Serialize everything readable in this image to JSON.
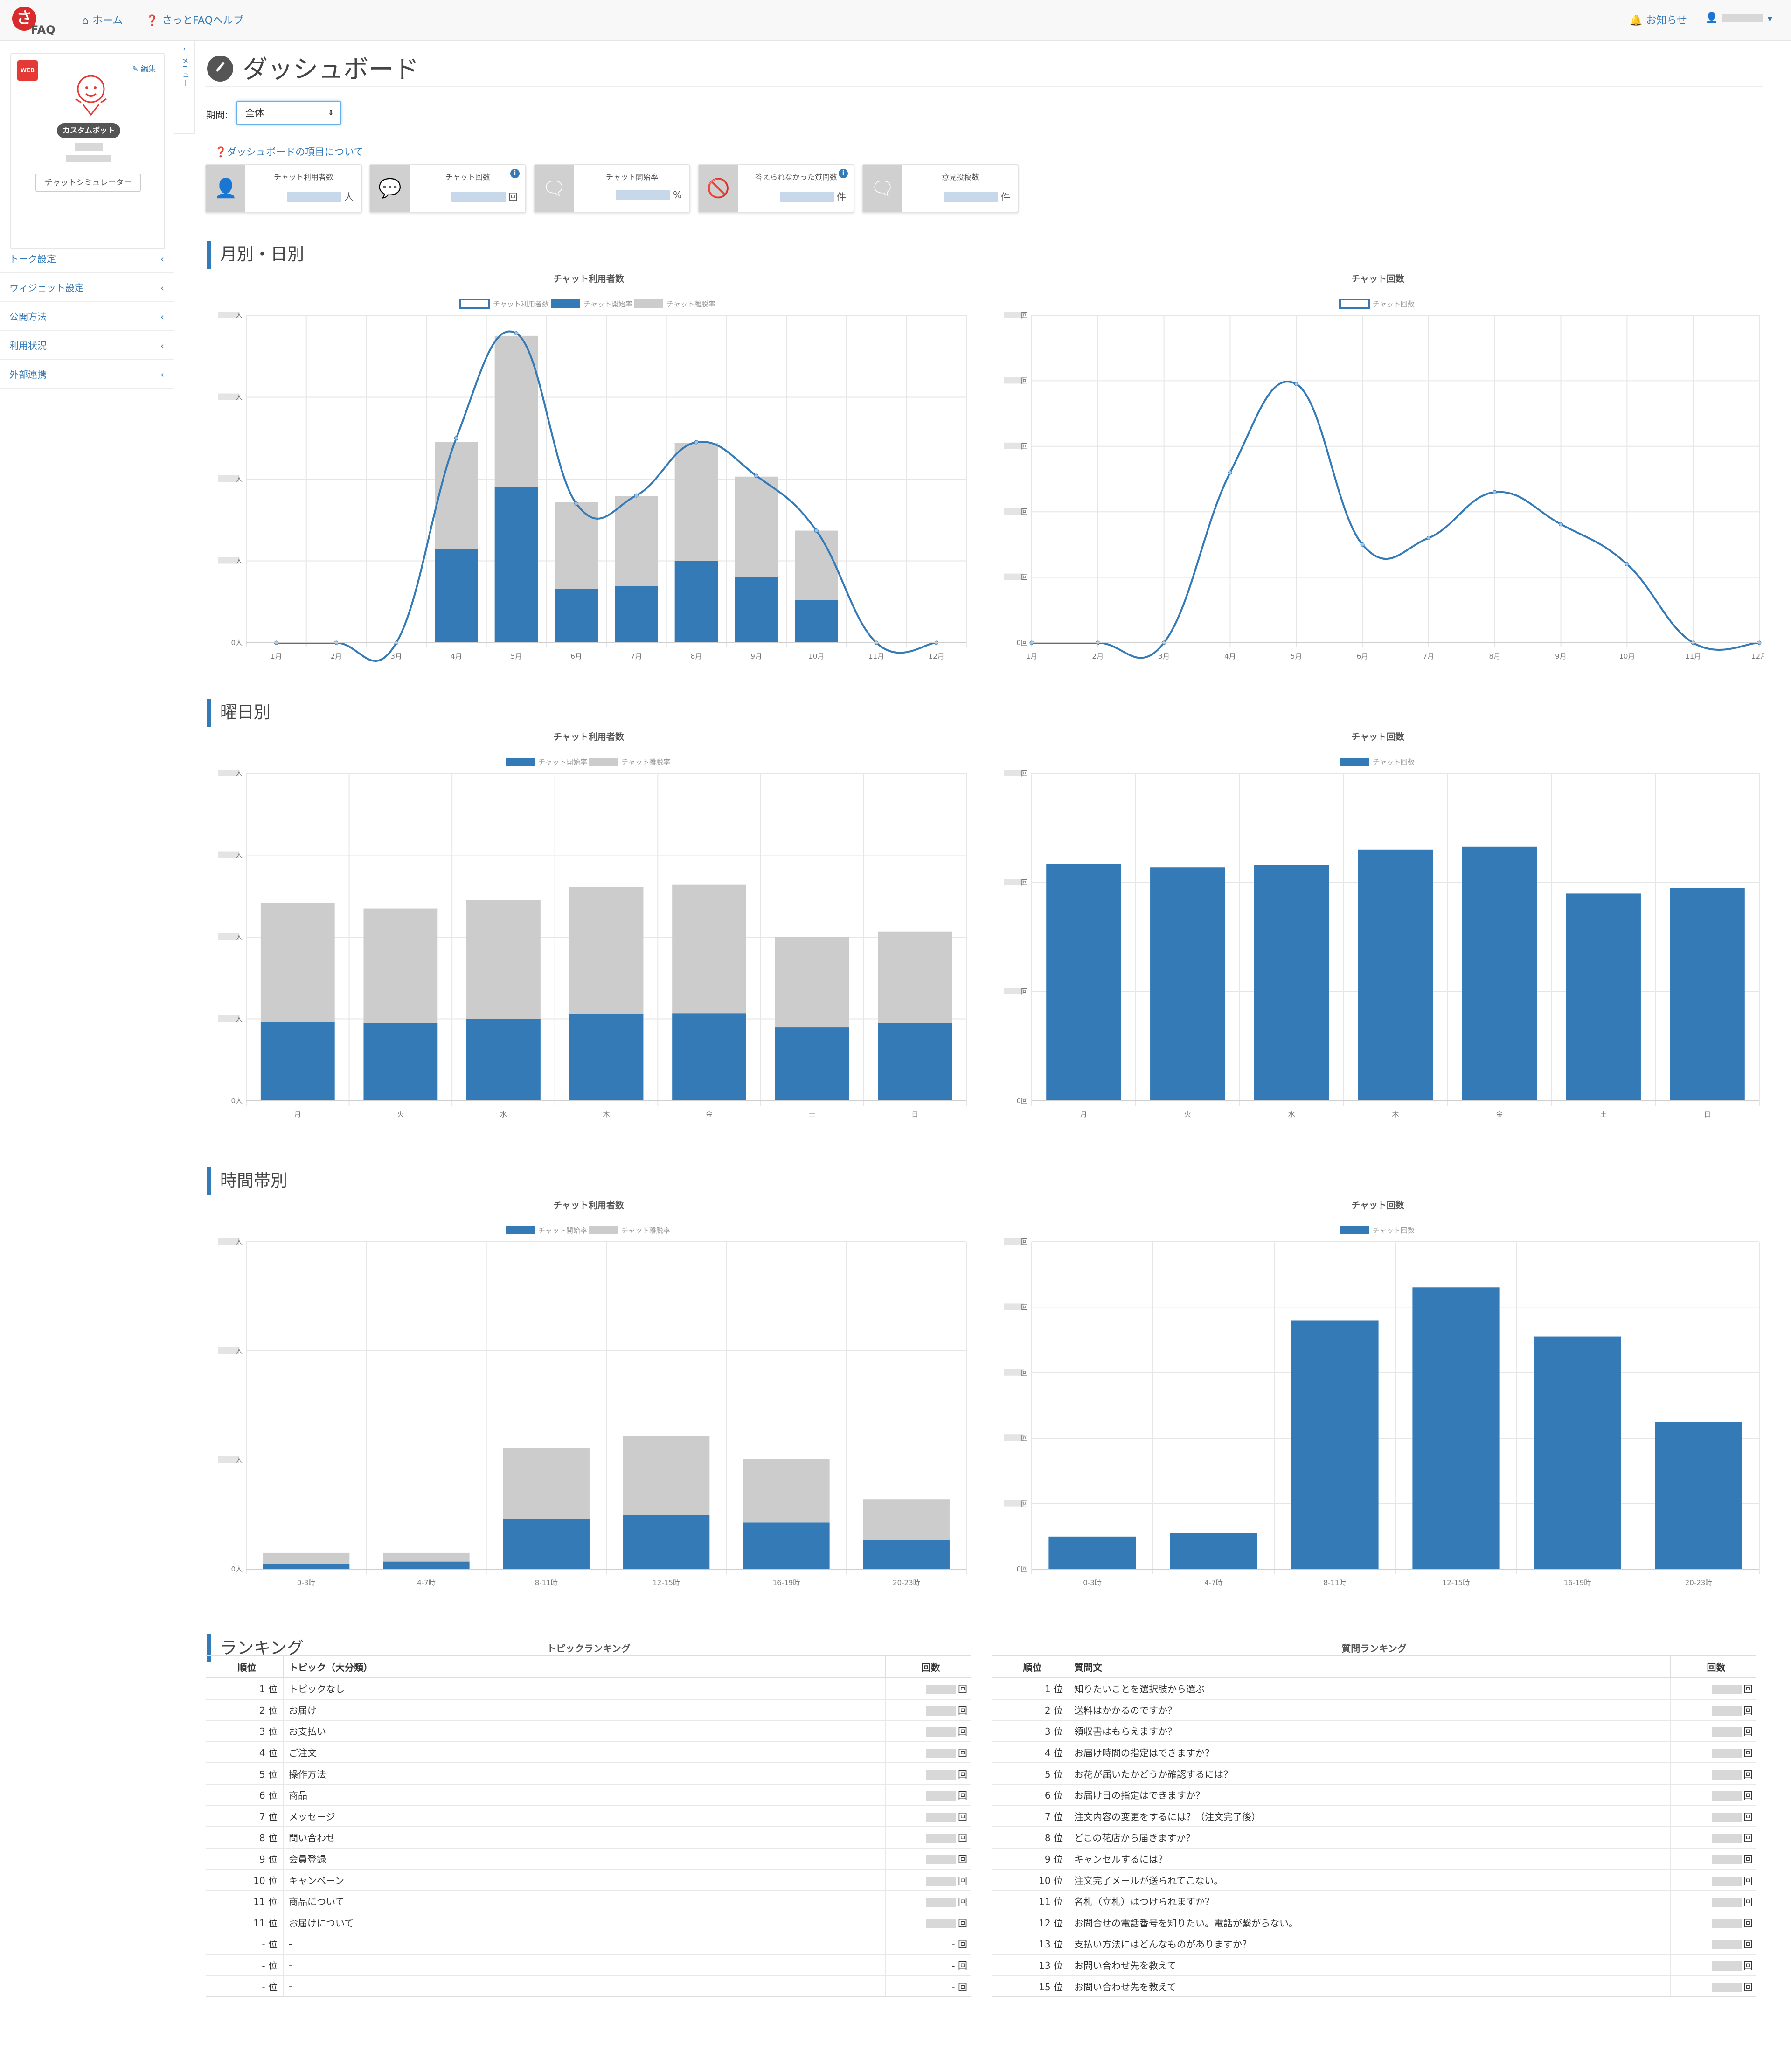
{
  "header": {
    "logo_text": "FAQ",
    "logo_mark": "さ",
    "nav_home": "ホーム",
    "nav_help": "さっとFAQヘルプ",
    "notifications": "お知らせ"
  },
  "sidebar": {
    "badge": "WEB",
    "edit_label": "編集",
    "bot_name": "カスタムボット",
    "simulator_button": "チャットシミュレーター",
    "menu_toggle": "メニュー",
    "items": [
      {
        "label": "トーク設定"
      },
      {
        "label": "ウィジェット設定"
      },
      {
        "label": "公開方法"
      },
      {
        "label": "利用状況"
      },
      {
        "label": "外部連携"
      }
    ]
  },
  "page": {
    "title": "ダッシュボード",
    "period_label": "期間:",
    "period_value": "全体",
    "help_link": "ダッシュボードの項目について"
  },
  "kpis": [
    {
      "label": "チャット利用者数",
      "unit": "人",
      "icon": "user-icon",
      "info": false
    },
    {
      "label": "チャット回数",
      "unit": "回",
      "icon": "chat-bubbles-icon",
      "info": true
    },
    {
      "label": "チャット開始率",
      "unit": "%",
      "icon": "comment-icon",
      "info": false
    },
    {
      "label": "答えられなかった質問数",
      "unit": "件",
      "icon": "comment-slash-icon",
      "info": true
    },
    {
      "label": "意見投稿数",
      "unit": "件",
      "icon": "comment-icon",
      "info": false
    }
  ],
  "sections": {
    "monthly": "月別・日別",
    "weekday": "曜日別",
    "hourly": "時間帯別",
    "ranking": "ランキング"
  },
  "colors": {
    "blue": "#337ab7",
    "gray": "#cccccc",
    "grid": "#e6e6e6"
  },
  "chart_data": [
    {
      "id": "monthly-users",
      "type": "bar",
      "title": "チャット利用者数",
      "legend": [
        "チャット利用者数",
        "チャット開始率",
        "チャット離脱率"
      ],
      "categories": [
        "1月",
        "2月",
        "3月",
        "4月",
        "5月",
        "6月",
        "7月",
        "8月",
        "9月",
        "10月",
        "11月",
        "12月"
      ],
      "stacked": true,
      "y_unit": "人",
      "ylim": [
        0,
        4
      ],
      "series": [
        {
          "name": "チャット開始率",
          "values": [
            0,
            0,
            0,
            1.15,
            1.9,
            0.66,
            0.69,
            1.0,
            0.8,
            0.52,
            0,
            0
          ]
        },
        {
          "name": "チャット離脱率",
          "values": [
            0,
            0,
            0,
            1.3,
            1.85,
            1.06,
            1.1,
            1.44,
            1.23,
            0.85,
            0,
            0
          ]
        },
        {
          "name": "チャット利用者数",
          "kind": "line",
          "values": [
            0,
            0,
            0,
            2.5,
            3.78,
            1.7,
            1.8,
            2.45,
            2.04,
            1.37,
            0,
            0
          ]
        }
      ]
    },
    {
      "id": "monthly-count",
      "type": "line",
      "title": "チャット回数",
      "legend": [
        "チャット回数"
      ],
      "categories": [
        "1月",
        "2月",
        "3月",
        "4月",
        "5月",
        "6月",
        "7月",
        "8月",
        "9月",
        "10月",
        "11月",
        "12月"
      ],
      "y_unit": "回",
      "ylim": [
        0,
        5
      ],
      "series": [
        {
          "name": "チャット回数",
          "values": [
            0,
            0,
            0,
            2.6,
            3.95,
            1.5,
            1.6,
            2.3,
            1.81,
            1.2,
            0,
            0
          ]
        }
      ]
    },
    {
      "id": "weekday-users",
      "type": "bar",
      "title": "チャット利用者数",
      "legend": [
        "チャット開始率",
        "チャット離脱率"
      ],
      "categories": [
        "月",
        "火",
        "水",
        "木",
        "金",
        "土",
        "日"
      ],
      "stacked": true,
      "y_unit": "人",
      "ylim": [
        0,
        4
      ],
      "series": [
        {
          "name": "チャット開始率",
          "values": [
            0.96,
            0.95,
            1.0,
            1.06,
            1.07,
            0.9,
            0.95
          ]
        },
        {
          "name": "チャット離脱率",
          "values": [
            1.46,
            1.4,
            1.45,
            1.55,
            1.57,
            1.1,
            1.12
          ]
        }
      ]
    },
    {
      "id": "weekday-count",
      "type": "bar",
      "title": "チャット回数",
      "legend": [
        "チャット回数"
      ],
      "categories": [
        "月",
        "火",
        "水",
        "木",
        "金",
        "土",
        "日"
      ],
      "y_unit": "回",
      "ylim": [
        0,
        3
      ],
      "series": [
        {
          "name": "チャット回数",
          "values": [
            2.17,
            2.14,
            2.16,
            2.3,
            2.33,
            1.9,
            1.95
          ]
        }
      ]
    },
    {
      "id": "hourly-users",
      "type": "bar",
      "title": "チャット利用者数",
      "legend": [
        "チャット開始率",
        "チャット離脱率"
      ],
      "categories": [
        "0-3時",
        "4-7時",
        "8-11時",
        "12-15時",
        "16-19時",
        "20-23時"
      ],
      "stacked": true,
      "y_unit": "人",
      "ylim": [
        0,
        3
      ],
      "series": [
        {
          "name": "チャット開始率",
          "values": [
            0.05,
            0.07,
            0.46,
            0.5,
            0.43,
            0.27
          ]
        },
        {
          "name": "チャット離脱率",
          "values": [
            0.1,
            0.08,
            0.65,
            0.72,
            0.58,
            0.37
          ]
        }
      ]
    },
    {
      "id": "hourly-count",
      "type": "bar",
      "title": "チャット回数",
      "legend": [
        "チャット回数"
      ],
      "categories": [
        "0-3時",
        "4-7時",
        "8-11時",
        "12-15時",
        "16-19時",
        "20-23時"
      ],
      "y_unit": "回",
      "ylim": [
        0,
        5
      ],
      "series": [
        {
          "name": "チャット回数",
          "values": [
            0.5,
            0.55,
            3.8,
            4.3,
            3.55,
            2.25
          ]
        }
      ]
    }
  ],
  "rankings": {
    "topic": {
      "title": "トピックランキング",
      "headers": {
        "rank": "順位",
        "name": "トピック（大分類）",
        "count": "回数"
      },
      "count_unit": "回",
      "rows": [
        {
          "rank": "1 位",
          "name": "トピックなし",
          "count": ""
        },
        {
          "rank": "2 位",
          "name": "お届け",
          "count": ""
        },
        {
          "rank": "3 位",
          "name": "お支払い",
          "count": ""
        },
        {
          "rank": "4 位",
          "name": "ご注文",
          "count": ""
        },
        {
          "rank": "5 位",
          "name": "操作方法",
          "count": ""
        },
        {
          "rank": "6 位",
          "name": "商品",
          "count": ""
        },
        {
          "rank": "7 位",
          "name": "メッセージ",
          "count": ""
        },
        {
          "rank": "8 位",
          "name": "問い合わせ",
          "count": ""
        },
        {
          "rank": "9 位",
          "name": "会員登録",
          "count": ""
        },
        {
          "rank": "10 位",
          "name": "キャンペーン",
          "count": ""
        },
        {
          "rank": "11 位",
          "name": "商品について",
          "count": ""
        },
        {
          "rank": "11 位",
          "name": "お届けについて",
          "count": ""
        },
        {
          "rank": "- 位",
          "name": "-",
          "count": "-"
        },
        {
          "rank": "- 位",
          "name": "-",
          "count": "-"
        },
        {
          "rank": "- 位",
          "name": "-",
          "count": "-"
        }
      ]
    },
    "question": {
      "title": "質問ランキング",
      "headers": {
        "rank": "順位",
        "name": "質問文",
        "count": "回数"
      },
      "count_unit": "回",
      "rows": [
        {
          "rank": "1 位",
          "name": "知りたいことを選択肢から選ぶ",
          "count": ""
        },
        {
          "rank": "2 位",
          "name": "送料はかかるのですか？",
          "count": ""
        },
        {
          "rank": "3 位",
          "name": "領収書はもらえますか？",
          "count": ""
        },
        {
          "rank": "4 位",
          "name": "お届け時間の指定はできますか？",
          "count": ""
        },
        {
          "rank": "5 位",
          "name": "お花が届いたかどうか確認するには？",
          "count": ""
        },
        {
          "rank": "6 位",
          "name": "お届け日の指定はできますか？",
          "count": ""
        },
        {
          "rank": "7 位",
          "name": "注文内容の変更をするには？（注文完了後）",
          "count": ""
        },
        {
          "rank": "8 位",
          "name": "どこの花店から届きますか？",
          "count": ""
        },
        {
          "rank": "9 位",
          "name": "キャンセルするには？",
          "count": ""
        },
        {
          "rank": "10 位",
          "name": "注文完了メールが送られてこない。",
          "count": ""
        },
        {
          "rank": "11 位",
          "name": "名札（立札）はつけられますか？",
          "count": ""
        },
        {
          "rank": "12 位",
          "name": "お問合せの電話番号を知りたい。電話が繋がらない。",
          "count": ""
        },
        {
          "rank": "13 位",
          "name": "支払い方法にはどんなものがありますか？",
          "count": ""
        },
        {
          "rank": "13 位",
          "name": "お問い合わせ先を教えて",
          "count": ""
        },
        {
          "rank": "15 位",
          "name": "お問い合わせ先を教えて",
          "count": ""
        }
      ]
    }
  }
}
